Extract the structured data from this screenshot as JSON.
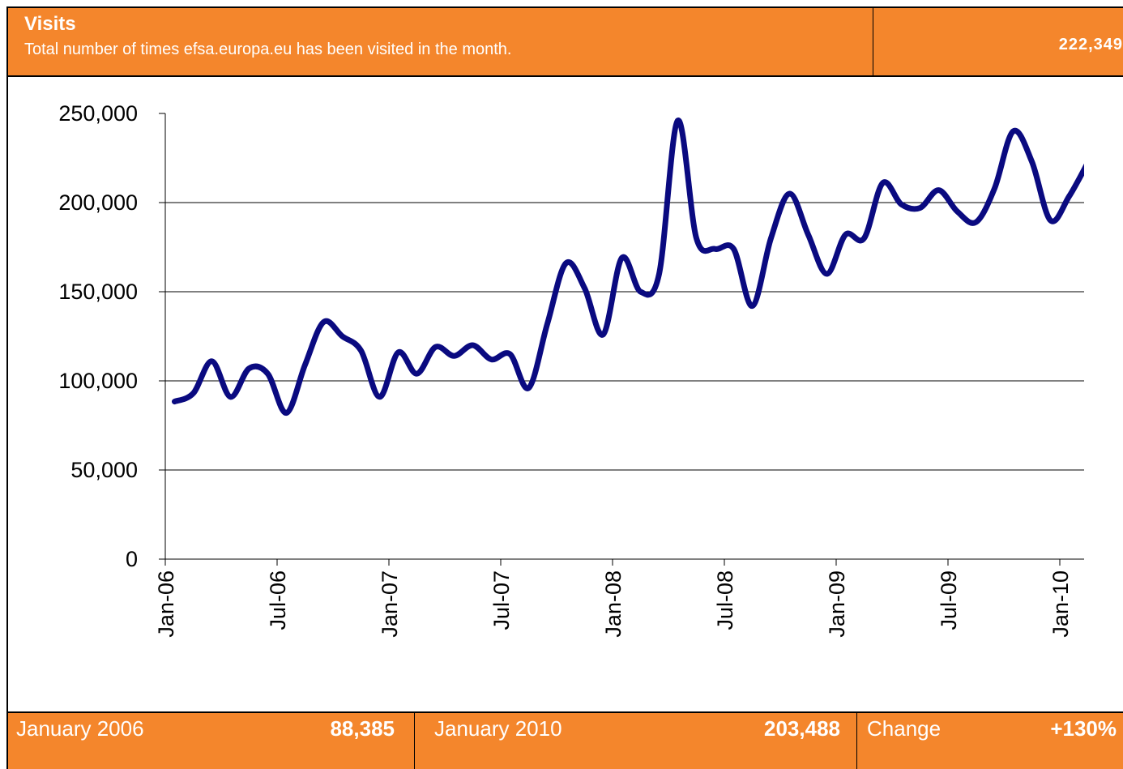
{
  "header": {
    "title": "Visits",
    "subtitle": "Total number of times efsa.europa.eu has been visited in the month.",
    "value": "222,349"
  },
  "footer": {
    "cells": [
      {
        "label": "January 2006",
        "value": "88,385"
      },
      {
        "label": "January 2010",
        "value": "203,488"
      },
      {
        "label": "Change",
        "value": "+130%"
      }
    ]
  },
  "chart_data": {
    "type": "line",
    "categories": [
      "Jan-06",
      null,
      null,
      null,
      null,
      null,
      "Jul-06",
      null,
      null,
      null,
      null,
      null,
      "Jan-07",
      null,
      null,
      null,
      null,
      null,
      "Jul-07",
      null,
      null,
      null,
      null,
      null,
      "Jan-08",
      null,
      null,
      null,
      null,
      null,
      "Jul-08",
      null,
      null,
      null,
      null,
      null,
      "Jan-09",
      null,
      null,
      null,
      null,
      null,
      "Jul-09",
      null,
      null,
      null,
      null,
      null,
      "Jan-10",
      null
    ],
    "series": [
      {
        "name": "Visits",
        "color": "#0a0a80",
        "values": [
          88385,
          93000,
          111000,
          91000,
          107000,
          104000,
          82000,
          109000,
          133000,
          125000,
          117000,
          91000,
          116000,
          104000,
          119000,
          114000,
          120000,
          112000,
          115000,
          96000,
          132000,
          166000,
          152000,
          126000,
          169000,
          150000,
          160000,
          246000,
          180000,
          174000,
          174000,
          142000,
          180000,
          205000,
          182000,
          160000,
          182000,
          180000,
          211000,
          199000,
          197000,
          207000,
          195000,
          189000,
          208000,
          240000,
          223000,
          190000,
          203488,
          222349
        ]
      }
    ],
    "ylim": [
      0,
      250000
    ],
    "yticks": [
      0,
      {
        "value": 50000,
        "label": "50,000"
      },
      {
        "value": 100000,
        "label": "100,000"
      },
      {
        "value": 150000,
        "label": "150,000"
      },
      {
        "value": 200000,
        "label": "200,000"
      },
      {
        "value": 250000,
        "label": "250,000"
      }
    ],
    "grid": true
  }
}
